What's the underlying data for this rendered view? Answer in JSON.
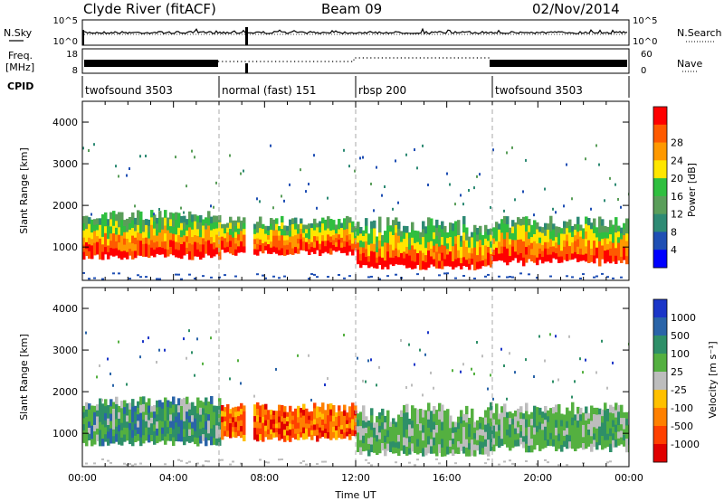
{
  "header": {
    "station": "Clyde River (fitACF)",
    "beam": "Beam 09",
    "date": "02/Nov/2014"
  },
  "summary": {
    "nsky_label": "N.Sky",
    "nsearch_label": "N.Search",
    "freq_label_line1": "Freq.",
    "freq_label_line2": "[MHz]",
    "nave_label": "Nave",
    "cpid_label": "CPID",
    "noise_ticks": [
      "10^5",
      "10^0"
    ],
    "freq_ticks": [
      "18",
      "8"
    ],
    "nave_ticks": [
      "60",
      "0"
    ]
  },
  "colors": {
    "power_scale": [
      "#0000ff",
      "#1f4fb4",
      "#2e8a74",
      "#5a9e5a",
      "#2fbf3f",
      "#ffe600",
      "#ff9900",
      "#ff5a00",
      "#ff0000"
    ],
    "velocity_scale": [
      "#1b36c8",
      "#2a64a8",
      "#2e8f68",
      "#54b040",
      "#bdbdbd",
      "#ffc000",
      "#ff8000",
      "#ff4000",
      "#e00000"
    ]
  },
  "chart_data": [
    {
      "type": "line",
      "name": "noise",
      "ylabel": "N.Sky",
      "y2label": "N.Search",
      "xlim": [
        "00:00",
        "24:00"
      ]
    },
    {
      "type": "line",
      "name": "frequency",
      "ylabel": "Freq. [MHz]",
      "y2label": "Nave",
      "ylim": [
        8,
        18
      ],
      "y2lim": [
        0,
        60
      ]
    },
    {
      "type": "table",
      "name": "cpid",
      "segments": [
        {
          "start": 0,
          "end": 6,
          "label": "twofsound 3503"
        },
        {
          "start": 6,
          "end": 12,
          "label": "normal (fast) 151"
        },
        {
          "start": 12,
          "end": 18,
          "label": "rbsp 200"
        },
        {
          "start": 18,
          "end": 24,
          "label": "twofsound 3503"
        }
      ]
    },
    {
      "type": "heatmap",
      "name": "power",
      "ylabel": "Slant Range [km]",
      "xlabel": "",
      "ylim": [
        200,
        4500
      ],
      "yticks": [
        "1000",
        "2000",
        "3000",
        "4000"
      ],
      "colorbar_label": "Power [dB]",
      "colorbar_ticks": [
        "4",
        "8",
        "12",
        "16",
        "20",
        "24",
        "28"
      ]
    },
    {
      "type": "heatmap",
      "name": "velocity",
      "ylabel": "Slant Range [km]",
      "xlabel": "Time UT",
      "ylim": [
        200,
        4500
      ],
      "yticks": [
        "1000",
        "2000",
        "3000",
        "4000"
      ],
      "xticks": [
        "00:00",
        "04:00",
        "08:00",
        "12:00",
        "16:00",
        "20:00",
        "00:00"
      ],
      "colorbar_label": "Velocity [m s⁻¹]",
      "colorbar_ticks": [
        "1000",
        "500",
        "100",
        "25",
        "-25",
        "-100",
        "-500",
        "-1000"
      ]
    }
  ]
}
